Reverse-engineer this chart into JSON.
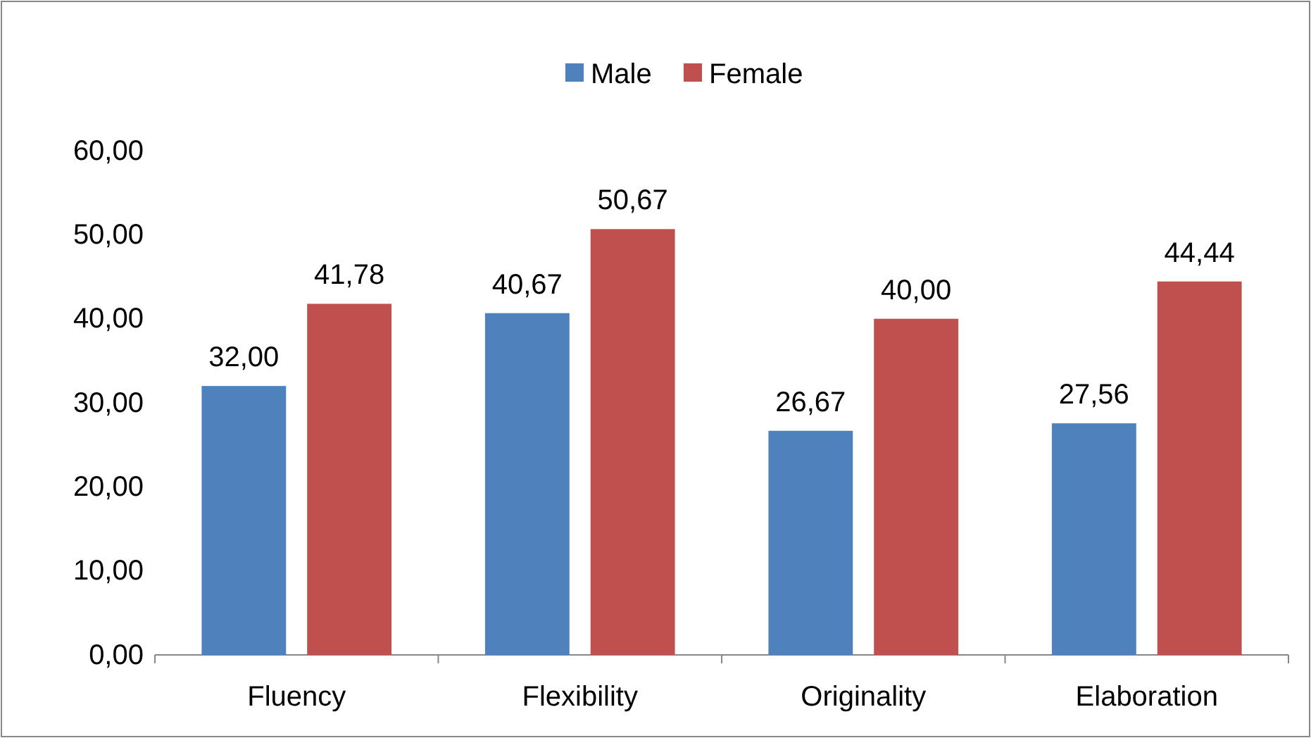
{
  "chart_data": {
    "type": "bar",
    "categories": [
      "Fluency",
      "Flexibility",
      "Originality",
      "Elaboration"
    ],
    "series": [
      {
        "name": "Male",
        "color": "#4f81bd",
        "values": [
          32.0,
          40.67,
          26.67,
          27.56
        ],
        "value_labels": [
          "32,00",
          "40,67",
          "26,67",
          "27,56"
        ]
      },
      {
        "name": "Female",
        "color": "#c0504d",
        "values": [
          41.78,
          50.67,
          40.0,
          44.44
        ],
        "value_labels": [
          "41,78",
          "50,67",
          "40,00",
          "44,44"
        ]
      }
    ],
    "ylim": [
      0,
      60
    ],
    "yticks": [
      {
        "value": 0,
        "label": "0,00"
      },
      {
        "value": 10,
        "label": "10,00"
      },
      {
        "value": 20,
        "label": "20,00"
      },
      {
        "value": 30,
        "label": "30,00"
      },
      {
        "value": 40,
        "label": "40,00"
      },
      {
        "value": 50,
        "label": "50,00"
      },
      {
        "value": 60,
        "label": "60,00"
      }
    ],
    "grid": false,
    "legend": "top"
  }
}
